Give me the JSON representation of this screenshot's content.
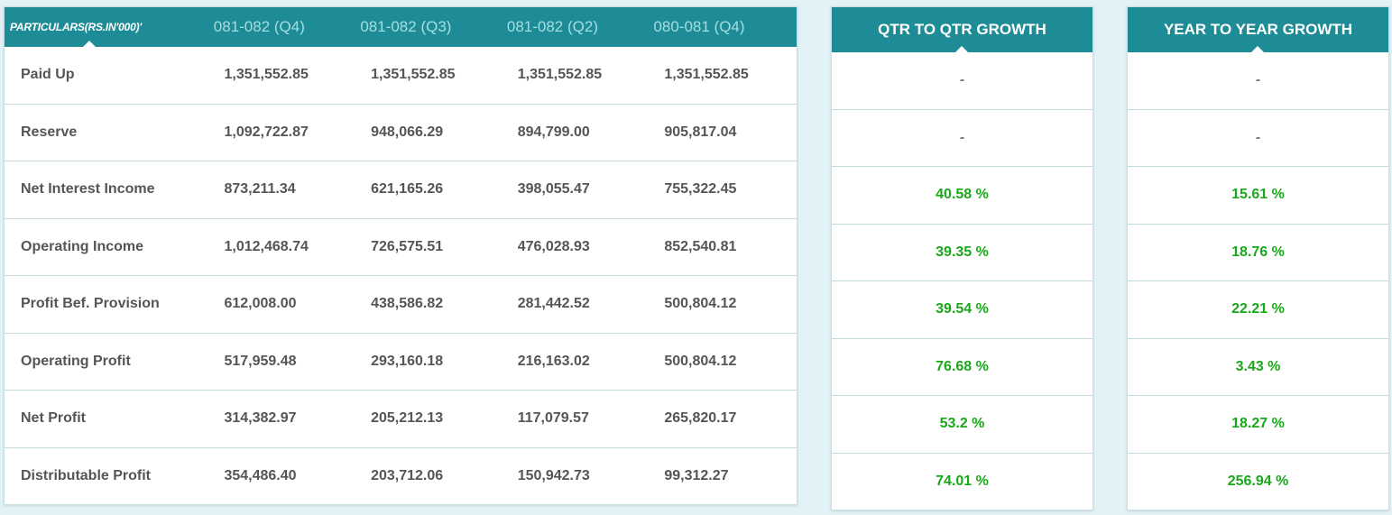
{
  "main": {
    "header": {
      "particulars": "PARTICULARS(RS.IN'000)'",
      "periods": [
        "081-082 (Q4)",
        "081-082 (Q3)",
        "081-082 (Q2)",
        "080-081 (Q4)"
      ]
    },
    "rows": [
      {
        "label": "Paid Up",
        "values": [
          "1,351,552.85",
          "1,351,552.85",
          "1,351,552.85",
          "1,351,552.85"
        ]
      },
      {
        "label": "Reserve",
        "values": [
          "1,092,722.87",
          "948,066.29",
          "894,799.00",
          "905,817.04"
        ]
      },
      {
        "label": "Net Interest Income",
        "values": [
          "873,211.34",
          "621,165.26",
          "398,055.47",
          "755,322.45"
        ]
      },
      {
        "label": "Operating Income",
        "values": [
          "1,012,468.74",
          "726,575.51",
          "476,028.93",
          "852,540.81"
        ]
      },
      {
        "label": "Profit Bef. Provision",
        "values": [
          "612,008.00",
          "438,586.82",
          "281,442.52",
          "500,804.12"
        ]
      },
      {
        "label": "Operating Profit",
        "values": [
          "517,959.48",
          "293,160.18",
          "216,163.02",
          "500,804.12"
        ]
      },
      {
        "label": "Net Profit",
        "values": [
          "314,382.97",
          "205,212.13",
          "117,079.57",
          "265,820.17"
        ]
      },
      {
        "label": "Distributable Profit",
        "values": [
          "354,486.40",
          "203,712.06",
          "150,942.73",
          "99,312.27"
        ]
      }
    ]
  },
  "qtr_growth": {
    "title": "QTR TO QTR GROWTH",
    "values": [
      "-",
      "-",
      "40.58 %",
      "39.35 %",
      "39.54 %",
      "76.68 %",
      "53.2 %",
      "74.01 %"
    ]
  },
  "yoy_growth": {
    "title": "YEAR TO YEAR GROWTH",
    "values": [
      "-",
      "-",
      "15.61 %",
      "18.76 %",
      "22.21 %",
      "3.43 %",
      "18.27 %",
      "256.94 %"
    ]
  },
  "colors": {
    "header_bg": "#1e8c96",
    "positive": "#1aa81a",
    "neutral": "#777777",
    "page_bg": "#e2f3f7"
  }
}
